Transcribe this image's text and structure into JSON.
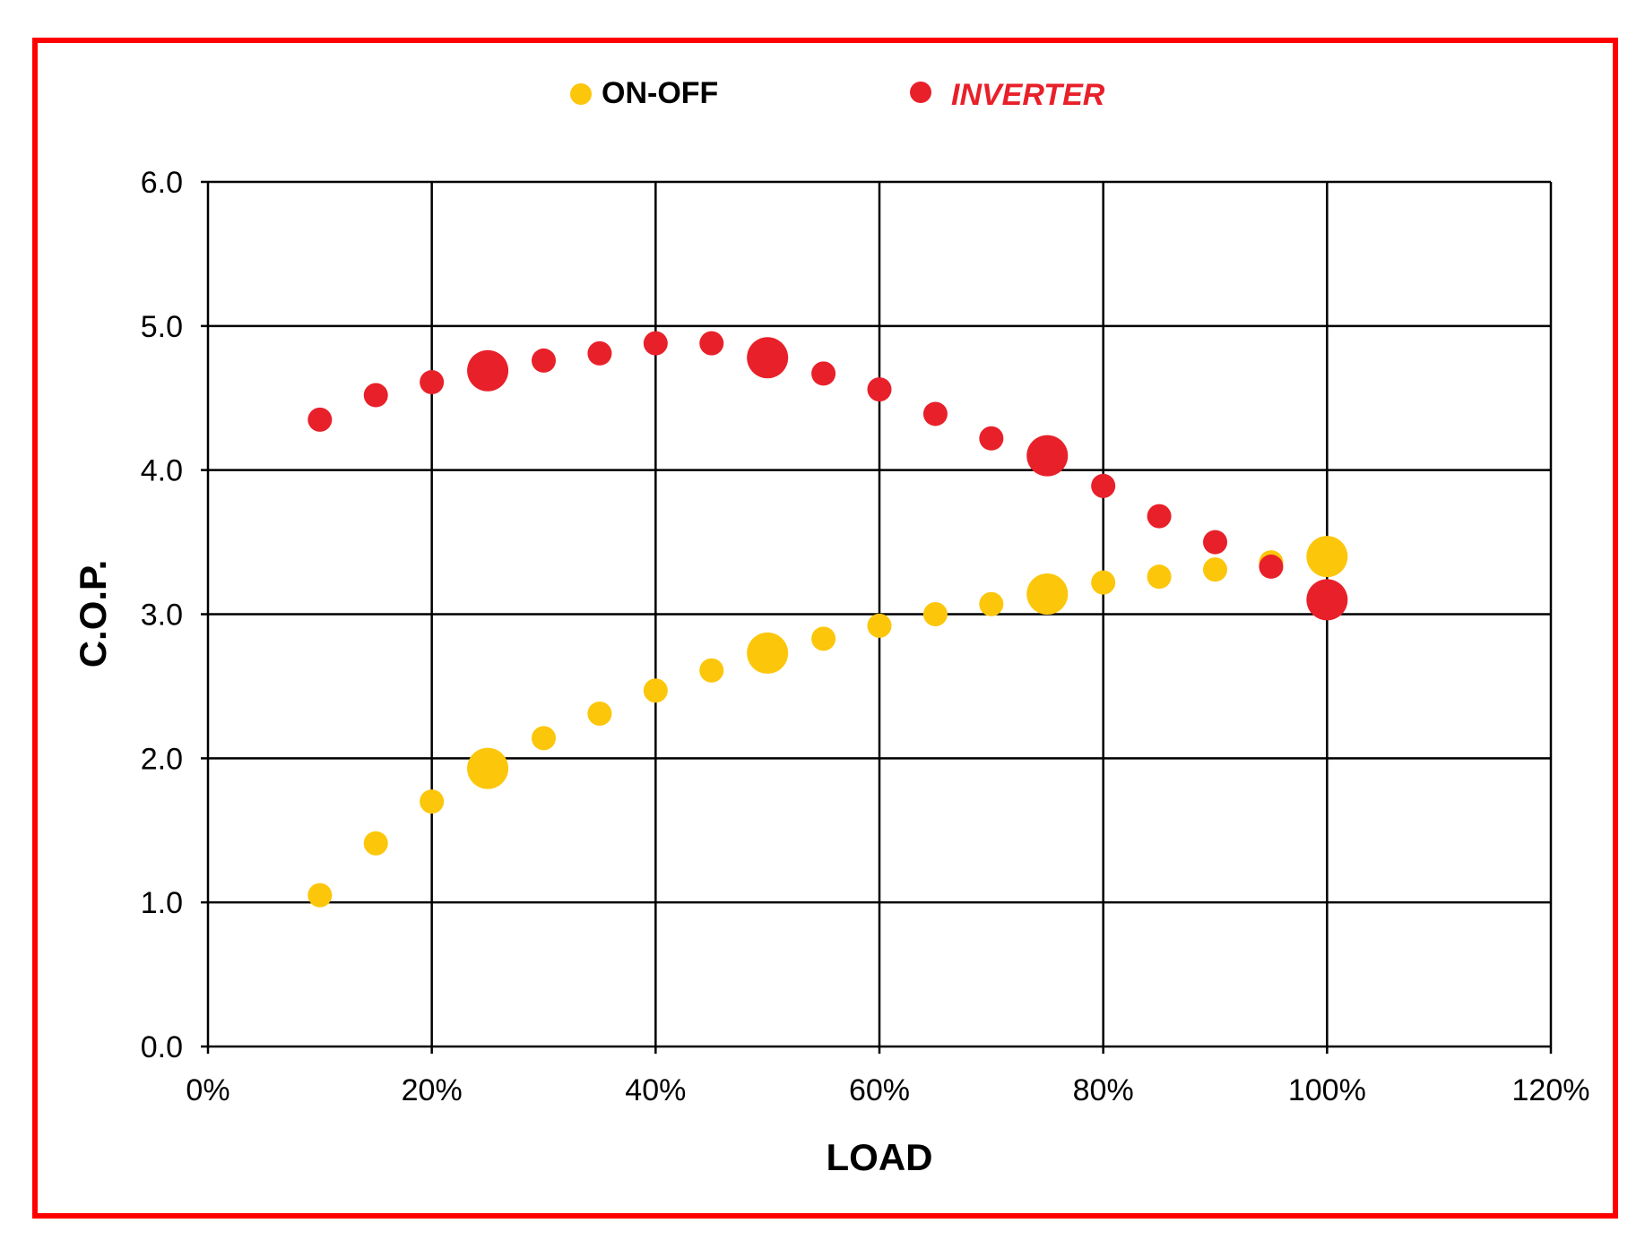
{
  "chart_data": {
    "type": "scatter",
    "title": "",
    "xlabel": "LOAD",
    "ylabel": "C.O.P.",
    "xlim": [
      0,
      120
    ],
    "ylim": [
      0,
      6
    ],
    "x_ticks": [
      0,
      20,
      40,
      60,
      80,
      100,
      120
    ],
    "x_tick_labels": [
      "0%",
      "20%",
      "40%",
      "60%",
      "80%",
      "100%",
      "120%"
    ],
    "y_ticks": [
      0,
      1,
      2,
      3,
      4,
      5,
      6
    ],
    "y_tick_labels": [
      "0.0",
      "1.0",
      "2.0",
      "3.0",
      "4.0",
      "5.0",
      "6.0"
    ],
    "grid": true,
    "legend_position": "top-center",
    "x": [
      10,
      15,
      20,
      25,
      30,
      35,
      40,
      45,
      50,
      55,
      60,
      65,
      70,
      75,
      80,
      85,
      90,
      95,
      100
    ],
    "highlight_x": [
      25,
      50,
      75,
      100
    ],
    "series": [
      {
        "name": "ON-OFF",
        "color": "#fcc60a",
        "values": [
          1.05,
          1.41,
          1.7,
          1.93,
          2.14,
          2.31,
          2.47,
          2.61,
          2.73,
          2.83,
          2.92,
          3.0,
          3.07,
          3.14,
          3.22,
          3.26,
          3.31,
          3.36,
          3.4
        ]
      },
      {
        "name": "INVERTER",
        "color": "#e8202a",
        "values": [
          4.35,
          4.52,
          4.61,
          4.69,
          4.76,
          4.81,
          4.88,
          4.88,
          4.78,
          4.67,
          4.56,
          4.39,
          4.22,
          4.1,
          3.89,
          3.68,
          3.5,
          3.33,
          3.1
        ]
      }
    ]
  },
  "legend": {
    "onoff_label": "ON-OFF",
    "inverter_label": "INVERTER"
  }
}
